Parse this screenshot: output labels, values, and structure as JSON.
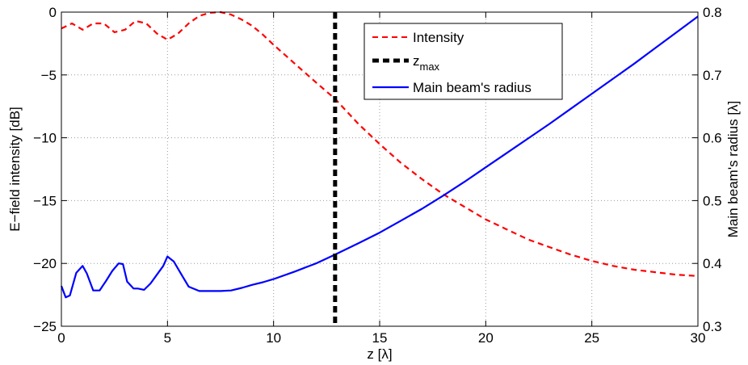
{
  "chart_data": {
    "type": "line",
    "title": "",
    "xlabel": "z [λ]",
    "ylabel_left": "E−field intensity [dB]",
    "ylabel_right": "Main beam's radius [λ]",
    "xlim": [
      0,
      30
    ],
    "ylim_left": [
      -25,
      0
    ],
    "ylim_right": [
      0.3,
      0.8
    ],
    "x_ticks": [
      "0",
      "5",
      "10",
      "15",
      "20",
      "25",
      "30"
    ],
    "y_left_ticks": [
      "0",
      "−5",
      "−10",
      "−15",
      "−20",
      "−25"
    ],
    "y_right_ticks": [
      "0.8",
      "0.7",
      "0.6",
      "0.5",
      "0.4",
      "0.3"
    ],
    "grid": true,
    "legend_position": "top-center",
    "zmax": 12.9,
    "zmax_label": {
      "base": "z",
      "sub": "max"
    },
    "series": [
      {
        "name": "Intensity",
        "axis": "left",
        "color": "#ff0000",
        "style": "dashed",
        "x": [
          0,
          0.5,
          1,
          1.5,
          2,
          2.5,
          3,
          3.5,
          4,
          4.5,
          5,
          5.5,
          6,
          6.5,
          7,
          7.5,
          8,
          8.5,
          9,
          9.5,
          10,
          11,
          12,
          12.9,
          14,
          15,
          16,
          17,
          18,
          19,
          20,
          21,
          22,
          23,
          24,
          25,
          26,
          27,
          28,
          29,
          30
        ],
        "values": [
          -1.3,
          -0.9,
          -1.4,
          -0.9,
          -0.9,
          -1.6,
          -1.4,
          -0.7,
          -0.9,
          -1.7,
          -2.2,
          -1.7,
          -0.9,
          -0.3,
          -0.05,
          0,
          -0.2,
          -0.6,
          -1.1,
          -1.8,
          -2.6,
          -4.1,
          -5.6,
          -6.9,
          -8.9,
          -10.5,
          -12.0,
          -13.3,
          -14.5,
          -15.5,
          -16.5,
          -17.3,
          -18.1,
          -18.7,
          -19.3,
          -19.8,
          -20.2,
          -20.5,
          -20.7,
          -20.9,
          -21.0
        ]
      },
      {
        "name": "Main beam's radius",
        "axis": "right",
        "color": "#0000ff",
        "style": "solid",
        "x": [
          0,
          0.2,
          0.4,
          0.7,
          1.0,
          1.2,
          1.5,
          1.8,
          2.1,
          2.4,
          2.7,
          2.9,
          3.1,
          3.4,
          3.6,
          3.9,
          4.2,
          4.5,
          4.8,
          5.0,
          5.3,
          5.7,
          6.0,
          6.5,
          7.0,
          7.5,
          8.0,
          8.5,
          9.0,
          9.5,
          10,
          11,
          12,
          12.9,
          14,
          15,
          16,
          17,
          18,
          19,
          20,
          21,
          22,
          23,
          24,
          25,
          26,
          27,
          28,
          29,
          30
        ],
        "values": [
          0.364,
          0.346,
          0.349,
          0.385,
          0.396,
          0.384,
          0.357,
          0.357,
          0.372,
          0.388,
          0.4,
          0.399,
          0.371,
          0.36,
          0.36,
          0.358,
          0.368,
          0.382,
          0.396,
          0.411,
          0.403,
          0.38,
          0.363,
          0.356,
          0.356,
          0.356,
          0.357,
          0.361,
          0.366,
          0.37,
          0.375,
          0.387,
          0.4,
          0.414,
          0.432,
          0.449,
          0.468,
          0.487,
          0.508,
          0.53,
          0.553,
          0.576,
          0.599,
          0.622,
          0.646,
          0.67,
          0.694,
          0.718,
          0.743,
          0.768,
          0.793
        ]
      }
    ],
    "legend": [
      {
        "label": "Intensity",
        "color": "#ff0000",
        "style": "dashed"
      },
      {
        "label": "z",
        "sub": "max",
        "color": "#000000",
        "style": "thick-dashed"
      },
      {
        "label": "Main beam's radius",
        "color": "#0000ff",
        "style": "solid"
      }
    ]
  }
}
